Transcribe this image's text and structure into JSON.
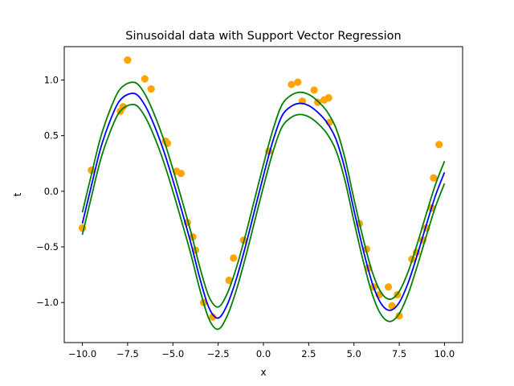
{
  "chart_data": {
    "type": "scatter",
    "title": "Sinusoidal data with Support Vector Regression",
    "xlabel": "x",
    "ylabel": "t",
    "xlim": [
      -11.0,
      11.0
    ],
    "ylim": [
      -1.36,
      1.3
    ],
    "grid": false,
    "legend": "none",
    "xticks": [
      {
        "value": -10.0,
        "label": "−10.0"
      },
      {
        "value": -7.5,
        "label": "−7.5"
      },
      {
        "value": -5.0,
        "label": "−5.0"
      },
      {
        "value": -2.5,
        "label": "−2.5"
      },
      {
        "value": 0.0,
        "label": "0.0"
      },
      {
        "value": 2.5,
        "label": "2.5"
      },
      {
        "value": 5.0,
        "label": "5.0"
      },
      {
        "value": 7.5,
        "label": "7.5"
      },
      {
        "value": 10.0,
        "label": "10.0"
      }
    ],
    "yticks": [
      {
        "value": -1.0,
        "label": "−1.0"
      },
      {
        "value": -0.5,
        "label": "−0.5"
      },
      {
        "value": 0.0,
        "label": "0.0"
      },
      {
        "value": 0.5,
        "label": "0.5"
      },
      {
        "value": 1.0,
        "label": "1.0"
      }
    ],
    "points": {
      "color": "#ffa500",
      "x": [
        -10.0,
        -9.5,
        -7.9,
        -7.75,
        -7.5,
        -6.55,
        -6.2,
        -5.4,
        -5.3,
        -4.8,
        -4.55,
        -4.2,
        -3.9,
        -3.75,
        -3.3,
        -2.8,
        -1.9,
        -1.65,
        -1.1,
        0.3,
        1.55,
        1.9,
        2.15,
        2.8,
        3.0,
        3.35,
        3.6,
        3.65,
        5.3,
        5.7,
        5.8,
        6.1,
        6.4,
        6.9,
        7.1,
        7.4,
        7.5,
        8.2,
        8.45,
        8.8,
        9.0,
        9.3,
        9.4,
        9.7
      ],
      "y": [
        -0.33,
        0.19,
        0.72,
        0.76,
        1.18,
        1.01,
        0.92,
        0.45,
        0.43,
        0.18,
        0.16,
        -0.28,
        -0.41,
        -0.53,
        -1.0,
        -1.13,
        -0.8,
        -0.6,
        -0.44,
        0.36,
        0.96,
        0.98,
        0.81,
        0.91,
        0.8,
        0.82,
        0.84,
        0.62,
        -0.29,
        -0.52,
        -0.69,
        -0.86,
        -0.93,
        -0.86,
        -1.03,
        -0.93,
        -1.12,
        -0.61,
        -0.55,
        -0.44,
        -0.33,
        -0.15,
        0.12,
        0.42
      ]
    },
    "series": [
      {
        "color": "#0000ff",
        "x": [
          -10.0,
          -9.5,
          -9.0,
          -8.5,
          -8.0,
          -7.5,
          -7.0,
          -6.5,
          -6.0,
          -5.5,
          -5.0,
          -4.5,
          -4.0,
          -3.5,
          -3.0,
          -2.5,
          -2.0,
          -1.5,
          -1.0,
          -0.5,
          0.0,
          0.5,
          1.0,
          1.5,
          2.0,
          2.5,
          3.0,
          3.5,
          4.0,
          4.5,
          5.0,
          5.5,
          6.0,
          6.5,
          7.0,
          7.5,
          8.0,
          8.5,
          9.0,
          9.5,
          10.0
        ],
        "y": [
          -0.29,
          0.05,
          0.38,
          0.62,
          0.8,
          0.87,
          0.87,
          0.76,
          0.58,
          0.36,
          0.1,
          -0.18,
          -0.47,
          -0.79,
          -1.05,
          -1.14,
          -1.02,
          -0.79,
          -0.5,
          -0.18,
          0.14,
          0.44,
          0.67,
          0.76,
          0.79,
          0.77,
          0.71,
          0.62,
          0.47,
          0.2,
          -0.17,
          -0.52,
          -0.82,
          -1.01,
          -1.07,
          -1.0,
          -0.82,
          -0.57,
          -0.3,
          -0.04,
          0.17
        ]
      },
      {
        "color": "#008000",
        "x": [
          -10.0,
          -9.5,
          -9.0,
          -8.5,
          -8.0,
          -7.5,
          -7.0,
          -6.5,
          -6.0,
          -5.5,
          -5.0,
          -4.5,
          -4.0,
          -3.5,
          -3.0,
          -2.5,
          -2.0,
          -1.5,
          -1.0,
          -0.5,
          0.0,
          0.5,
          1.0,
          1.5,
          2.0,
          2.5,
          3.0,
          3.5,
          4.0,
          4.5,
          5.0,
          5.5,
          6.0,
          6.5,
          7.0,
          7.5,
          8.0,
          8.5,
          9.0,
          9.5,
          10.0
        ],
        "y": [
          -0.19,
          0.15,
          0.48,
          0.72,
          0.9,
          0.97,
          0.97,
          0.86,
          0.68,
          0.46,
          0.2,
          -0.08,
          -0.37,
          -0.69,
          -0.95,
          -1.04,
          -0.92,
          -0.69,
          -0.4,
          -0.08,
          0.24,
          0.54,
          0.77,
          0.86,
          0.89,
          0.87,
          0.81,
          0.72,
          0.57,
          0.3,
          -0.07,
          -0.42,
          -0.72,
          -0.91,
          -0.97,
          -0.9,
          -0.72,
          -0.47,
          -0.2,
          0.06,
          0.27
        ]
      },
      {
        "color": "#008000",
        "x": [
          -10.0,
          -9.5,
          -9.0,
          -8.5,
          -8.0,
          -7.5,
          -7.0,
          -6.5,
          -6.0,
          -5.5,
          -5.0,
          -4.5,
          -4.0,
          -3.5,
          -3.0,
          -2.5,
          -2.0,
          -1.5,
          -1.0,
          -0.5,
          0.0,
          0.5,
          1.0,
          1.5,
          2.0,
          2.5,
          3.0,
          3.5,
          4.0,
          4.5,
          5.0,
          5.5,
          6.0,
          6.5,
          7.0,
          7.5,
          8.0,
          8.5,
          9.0,
          9.5,
          10.0
        ],
        "y": [
          -0.39,
          -0.05,
          0.28,
          0.52,
          0.7,
          0.77,
          0.77,
          0.66,
          0.48,
          0.26,
          0.0,
          -0.28,
          -0.57,
          -0.89,
          -1.15,
          -1.24,
          -1.12,
          -0.89,
          -0.6,
          -0.28,
          0.04,
          0.34,
          0.57,
          0.66,
          0.69,
          0.67,
          0.61,
          0.52,
          0.37,
          0.1,
          -0.27,
          -0.62,
          -0.92,
          -1.11,
          -1.17,
          -1.1,
          -0.92,
          -0.67,
          -0.4,
          -0.14,
          0.07
        ]
      }
    ]
  }
}
